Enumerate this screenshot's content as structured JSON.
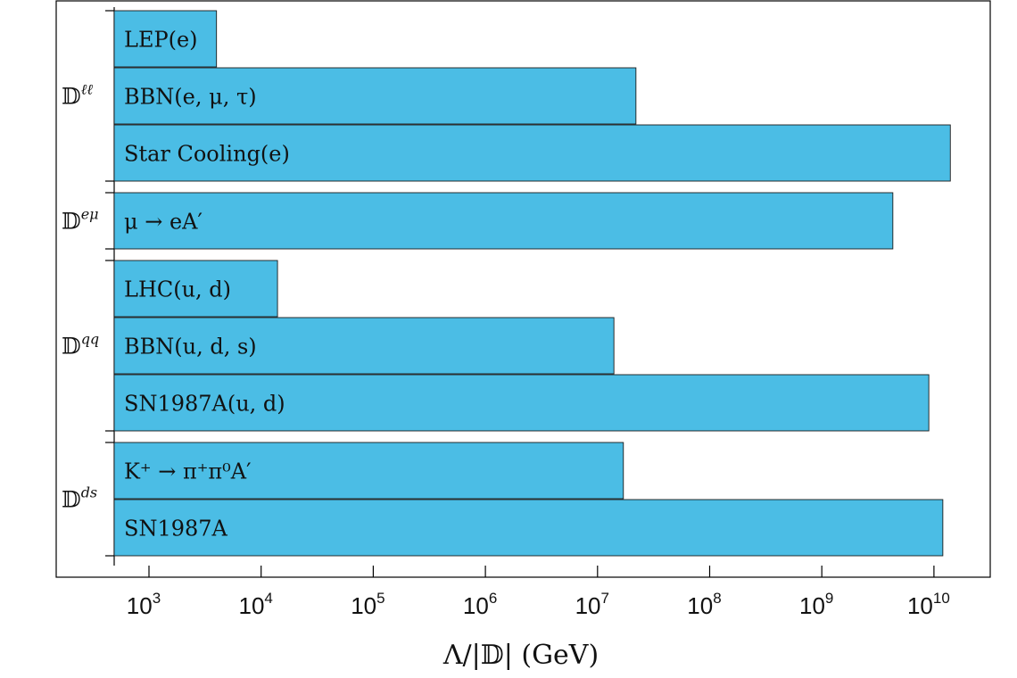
{
  "chart_data": {
    "type": "bar",
    "orientation": "horizontal",
    "xscale": "log",
    "xlim": [
      500,
      15000000000
    ],
    "xlabel": "Λ/|𝔻| (GeV)",
    "x_ticks": [
      {
        "base": "10",
        "exp": "3",
        "value": 1000
      },
      {
        "base": "10",
        "exp": "4",
        "value": 10000
      },
      {
        "base": "10",
        "exp": "5",
        "value": 100000
      },
      {
        "base": "10",
        "exp": "6",
        "value": 1000000
      },
      {
        "base": "10",
        "exp": "7",
        "value": 10000000
      },
      {
        "base": "10",
        "exp": "8",
        "value": 100000000
      },
      {
        "base": "10",
        "exp": "9",
        "value": 1000000000
      },
      {
        "base": "10",
        "exp": "10",
        "value": 10000000000
      }
    ],
    "bar_color": "#4bbde5",
    "groups": [
      {
        "label": "𝔻",
        "superscript": "ℓℓ",
        "bars": [
          {
            "label": "LEP(e)",
            "value": 4000
          },
          {
            "label": "BBN(e, μ, τ)",
            "value": 22000000
          },
          {
            "label": "Star Cooling(e)",
            "value": 14000000000
          }
        ]
      },
      {
        "label": "𝔻",
        "superscript": "eμ",
        "bars": [
          {
            "label": "μ → eA′",
            "value": 4300000000
          }
        ]
      },
      {
        "label": "𝔻",
        "superscript": "qq",
        "bars": [
          {
            "label": "LHC(u, d)",
            "value": 14000
          },
          {
            "label": "BBN(u, d, s)",
            "value": 14000000
          },
          {
            "label": "SN1987A(u, d)",
            "value": 9000000000
          }
        ]
      },
      {
        "label": "𝔻",
        "superscript": "ds",
        "bars": [
          {
            "label": "K⁺ → π⁺π⁰A′",
            "value": 17000000
          },
          {
            "label": "SN1987A",
            "value": 12000000000
          }
        ]
      }
    ]
  }
}
